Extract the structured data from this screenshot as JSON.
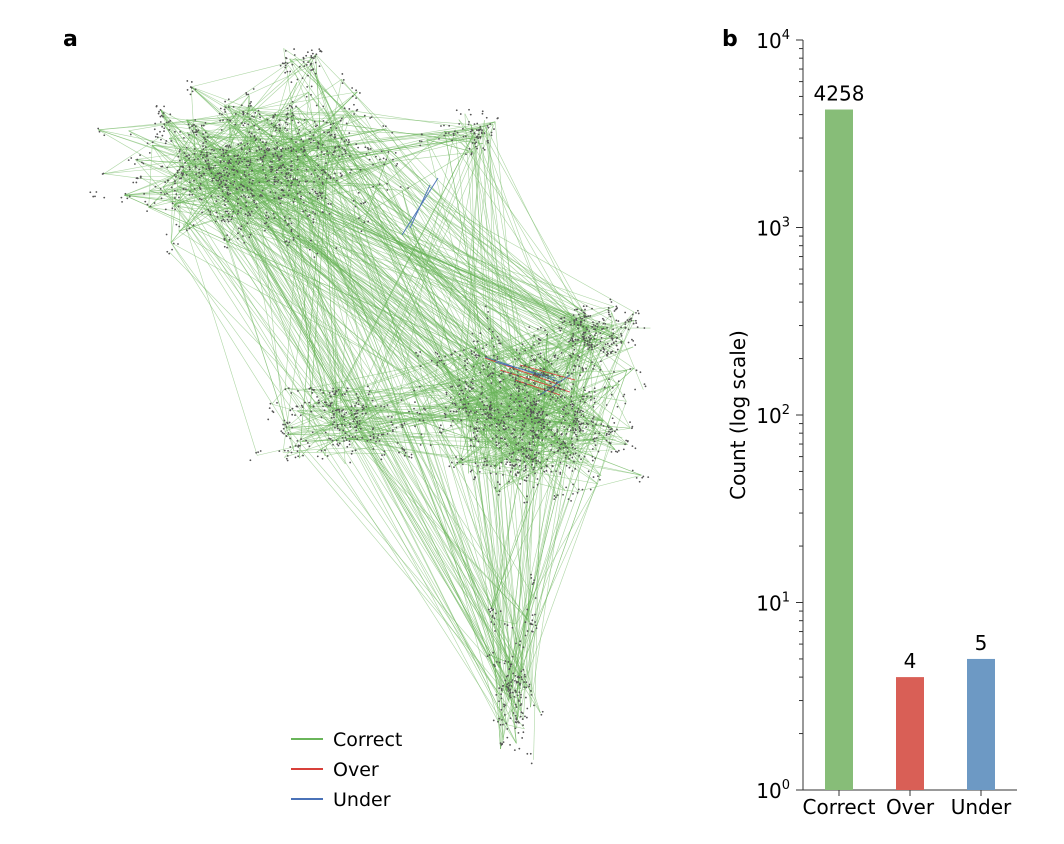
{
  "chart_data": [
    {
      "type": "network",
      "panel_label": "a",
      "legend": {
        "placement": "bottom-center",
        "entries": [
          {
            "label": "Correct",
            "color": "#6ab55a"
          },
          {
            "label": "Over",
            "color": "#d8403a"
          },
          {
            "label": "Under",
            "color": "#4a72b8"
          }
        ]
      },
      "node_color": "#555555"
    },
    {
      "type": "bar",
      "panel_label": "b",
      "categories": [
        "Correct",
        "Over",
        "Under"
      ],
      "values": [
        4258,
        4,
        5
      ],
      "data_labels": [
        "4258",
        "4",
        "5"
      ],
      "colors": [
        "#87bd78",
        "#d95f56",
        "#6d99c4"
      ],
      "ylabel": "Count (log scale)",
      "xlabel": "",
      "yscale": "log",
      "ylim": [
        1,
        10000
      ],
      "yticks": [
        {
          "base": "10",
          "exp": "0"
        },
        {
          "base": "10",
          "exp": "1"
        },
        {
          "base": "10",
          "exp": "2"
        },
        {
          "base": "10",
          "exp": "3"
        },
        {
          "base": "10",
          "exp": "4"
        }
      ]
    }
  ]
}
